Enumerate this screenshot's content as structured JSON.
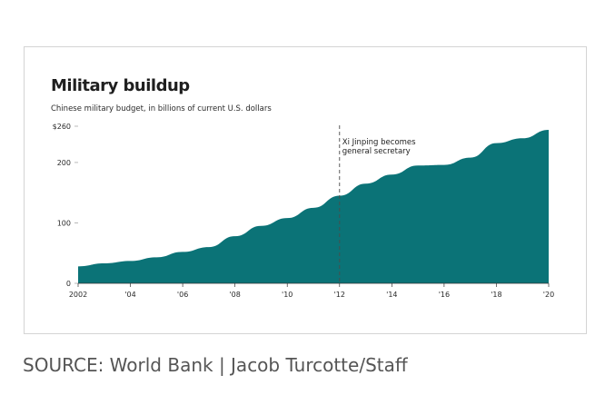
{
  "chart_data": {
    "type": "area",
    "title": "Military buildup",
    "subtitle": "Chinese military budget, in billions of current U.S. dollars",
    "xlabel": "",
    "ylabel": "",
    "x": [
      2002,
      2003,
      2004,
      2005,
      2006,
      2007,
      2008,
      2009,
      2010,
      2011,
      2012,
      2013,
      2014,
      2015,
      2016,
      2017,
      2018,
      2019,
      2020
    ],
    "values": [
      28,
      33,
      37,
      43,
      52,
      60,
      78,
      95,
      108,
      125,
      145,
      165,
      180,
      195,
      196,
      208,
      232,
      240,
      254
    ],
    "xlim": [
      2002,
      2020
    ],
    "ylim": [
      0,
      260
    ],
    "y_ticks": [
      {
        "value": 0,
        "label": "0"
      },
      {
        "value": 100,
        "label": "100"
      },
      {
        "value": 200,
        "label": "200"
      },
      {
        "value": 260,
        "label": "$260"
      }
    ],
    "x_ticks": [
      {
        "value": 2002,
        "label": "2002"
      },
      {
        "value": 2004,
        "label": "'04"
      },
      {
        "value": 2006,
        "label": "'06"
      },
      {
        "value": 2008,
        "label": "'08"
      },
      {
        "value": 2010,
        "label": "'10"
      },
      {
        "value": 2012,
        "label": "'12"
      },
      {
        "value": 2014,
        "label": "'14"
      },
      {
        "value": 2016,
        "label": "'16"
      },
      {
        "value": 2018,
        "label": "'18"
      },
      {
        "value": 2020,
        "label": "'20"
      }
    ],
    "annotation": {
      "x": 2012,
      "lines": [
        "Xi Jinping becomes",
        "general secretary"
      ]
    },
    "fill_color": "#0b7377",
    "grid": false
  },
  "source": "SOURCE: World Bank | Jacob Turcotte/Staff"
}
